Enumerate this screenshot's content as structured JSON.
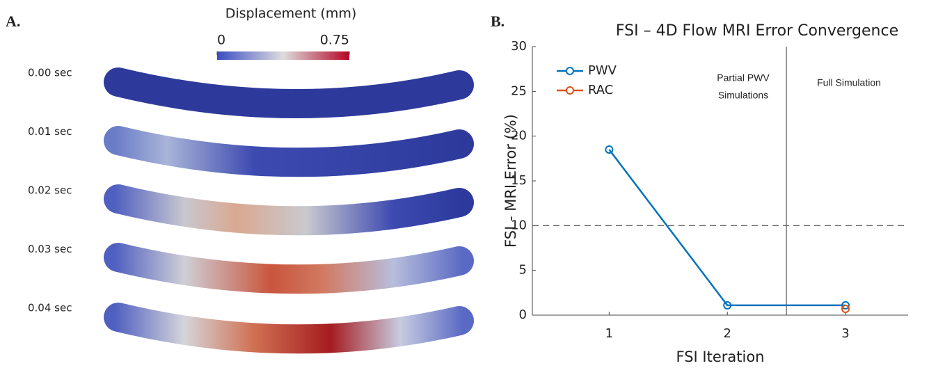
{
  "panel_a": {
    "label": "A.",
    "colorbar": {
      "title": "Displacement (mm)",
      "range": [
        0,
        0.75
      ],
      "ticks": [
        0,
        0.75
      ]
    },
    "time_labels": [
      "0.00 sec",
      "0.01 sec",
      "0.02 sec",
      "0.03 sec",
      "0.04 sec"
    ]
  },
  "panel_b": {
    "label": "B."
  },
  "chart_data": {
    "type": "line",
    "title": "FSI – 4D Flow MRI Error Convergence",
    "x_label": "FSI Iteration",
    "y_label": "FSI - MRI Error (%)",
    "x": [
      1,
      2,
      3
    ],
    "series": [
      {
        "name": "PWV",
        "color": "#0072bd",
        "values": [
          18.5,
          1.1,
          1.1
        ]
      },
      {
        "name": "RAC",
        "color": "#d95319",
        "values": [
          null,
          null,
          0.7
        ]
      }
    ],
    "xlim": [
      0.35,
      3.53
    ],
    "xticks": [
      1,
      2,
      3
    ],
    "ylim": [
      0,
      30
    ],
    "yticks": [
      0,
      5,
      10,
      15,
      20,
      25,
      30
    ],
    "reference_lines": [
      {
        "axis": "y",
        "value": 10,
        "style": "dashed"
      },
      {
        "axis": "x",
        "value": 2.5,
        "style": "solid"
      }
    ],
    "annotations": [
      {
        "lines": [
          "Partial PWV",
          "Simulations"
        ]
      },
      {
        "lines": [
          "Full Simulation"
        ]
      }
    ],
    "legend": "upper left"
  }
}
